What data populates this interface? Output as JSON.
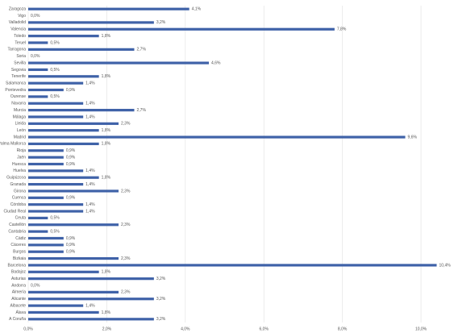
{
  "chart_data": {
    "type": "barh",
    "categories": [
      "Zaragoza",
      "Vigo",
      "Valladolid",
      "Valencia",
      "Toledo",
      "Teruel",
      "Tarragona",
      "Soria",
      "Sevilla",
      "Segovia",
      "Tenerife",
      "Salamanca",
      "Pontevedra",
      "Ourense",
      "Navarra",
      "Murcia",
      "Málaga",
      "Lleida",
      "León",
      "Madrid",
      "Palma Mallorca",
      "Rioja",
      "Jaén",
      "Huesca",
      "Huelva",
      "Guipúzcoa",
      "Granada",
      "Girona",
      "Cuenca",
      "Córdoba",
      "Ciudad Real",
      "Ceuta",
      "Castellón",
      "Cantabria",
      "Cádiz",
      "Cáceres",
      "Burgos",
      "Bizkaia",
      "Barcelona",
      "Badajoz",
      "Asturias",
      "Andorra",
      "Almería",
      "Alicante",
      "Albacete",
      "Álava",
      "A Coruña"
    ],
    "values": [
      4.1,
      0.0,
      3.2,
      7.8,
      1.8,
      0.5,
      2.7,
      0.0,
      4.6,
      0.5,
      1.8,
      1.4,
      0.9,
      0.5,
      1.4,
      2.7,
      1.4,
      2.3,
      1.8,
      9.6,
      1.8,
      0.9,
      0.9,
      0.9,
      1.4,
      1.8,
      1.4,
      2.3,
      0.9,
      1.4,
      1.4,
      0.5,
      2.3,
      0.5,
      0.9,
      0.9,
      0.9,
      2.3,
      10.4,
      1.8,
      3.2,
      0.0,
      2.3,
      3.2,
      1.4,
      1.8,
      3.2
    ],
    "value_labels": [
      "4,1%",
      "0,0%",
      "3,2%",
      "7,8%",
      "1,8%",
      "0,5%",
      "2,7%",
      "0,0%",
      "4,6%",
      "0,5%",
      "1,8%",
      "1,4%",
      "0,9%",
      "0,5%",
      "1,4%",
      "2,7%",
      "1,4%",
      "2,3%",
      "1,8%",
      "9,6%",
      "1,8%",
      "0,9%",
      "0,9%",
      "0,9%",
      "1,4%",
      "1,8%",
      "1,4%",
      "2,3%",
      "0,9%",
      "1,4%",
      "1,4%",
      "0,5%",
      "2,3%",
      "0,5%",
      "0,9%",
      "0,9%",
      "0,9%",
      "2,3%",
      "10,4%",
      "1,8%",
      "3,2%",
      "0,0%",
      "2,3%",
      "3,2%",
      "1,4%",
      "1,8%",
      "3,2%"
    ],
    "color": "#3f62a8",
    "xlim": [
      0,
      10.8
    ],
    "xticks": [
      {
        "value": 0,
        "label": "0,0%"
      },
      {
        "value": 2,
        "label": "2,0%"
      },
      {
        "value": 4,
        "label": "4,0%"
      },
      {
        "value": 6,
        "label": "6,0%"
      },
      {
        "value": 8,
        "label": "8,0%"
      },
      {
        "value": 10,
        "label": "10,0%"
      }
    ],
    "grid": true
  }
}
